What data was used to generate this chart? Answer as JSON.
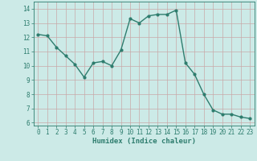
{
  "xlabel": "Humidex (Indice chaleur)",
  "x": [
    0,
    1,
    2,
    3,
    4,
    5,
    6,
    7,
    8,
    9,
    10,
    11,
    12,
    13,
    14,
    15,
    16,
    17,
    18,
    19,
    20,
    21,
    22,
    23
  ],
  "y": [
    12.2,
    12.1,
    11.3,
    10.7,
    10.1,
    9.2,
    10.2,
    10.3,
    10.0,
    11.1,
    13.3,
    13.0,
    13.5,
    13.6,
    13.6,
    13.9,
    10.2,
    9.4,
    8.0,
    6.9,
    6.6,
    6.6,
    6.4,
    6.3
  ],
  "line_color": "#2e7d6e",
  "marker": "o",
  "marker_size": 2,
  "line_width": 1.0,
  "bg_color": "#cceae7",
  "grid_color": "#c8a8a8",
  "tick_color": "#2e7d6e",
  "label_color": "#2e7d6e",
  "ylim": [
    5.8,
    14.5
  ],
  "xlim": [
    -0.5,
    23.5
  ],
  "yticks": [
    6,
    7,
    8,
    9,
    10,
    11,
    12,
    13,
    14
  ],
  "xticks": [
    0,
    1,
    2,
    3,
    4,
    5,
    6,
    7,
    8,
    9,
    10,
    11,
    12,
    13,
    14,
    15,
    16,
    17,
    18,
    19,
    20,
    21,
    22,
    23
  ],
  "xlabel_fontsize": 6.5,
  "tick_fontsize": 5.5
}
